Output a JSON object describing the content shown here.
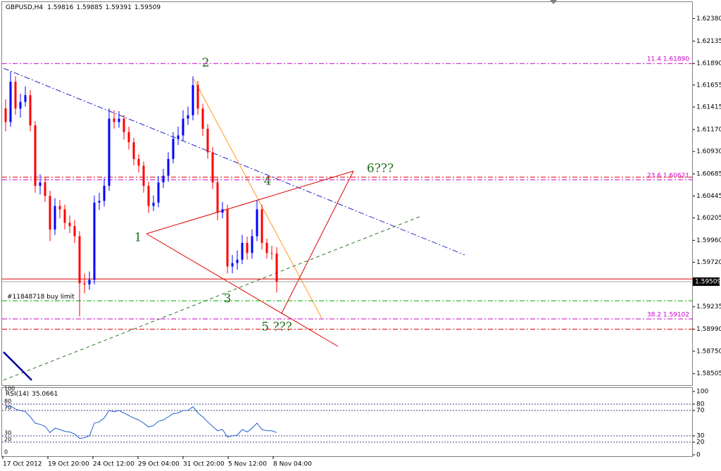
{
  "chart_data": {
    "type": "candlestick",
    "symbol": "GBPUSD,H4",
    "open": [
      1.614,
      1.61251,
      1.61691,
      1.61398,
      1.61471,
      1.61544,
      1.61215,
      1.60555,
      1.60592,
      1.60445,
      1.60078,
      1.60335,
      1.60298,
      1.60152,
      1.60115,
      1.60005,
      1.59492,
      1.5948,
      1.59529,
      1.60372,
      1.6039,
      1.60555,
      1.61288,
      1.61251,
      1.61288,
      1.61141,
      1.61031,
      1.60848,
      1.60775,
      1.60555,
      1.60335,
      1.60372,
      1.60592,
      1.60665,
      1.60848,
      1.61068,
      1.61105,
      1.61288,
      1.61325,
      1.61654,
      1.61398,
      1.61178,
      1.60921,
      1.60592,
      1.60262,
      1.60298,
      1.59675,
      1.59712,
      1.59749,
      1.59932,
      1.59822,
      1.60005,
      1.60298,
      1.59932,
      1.59822,
      1.59816
    ],
    "high": [
      1.615,
      1.618,
      1.6175,
      1.6156,
      1.6164,
      1.616,
      1.6126,
      1.6068,
      1.6065,
      1.605,
      1.6042,
      1.604,
      1.6035,
      1.6023,
      1.6018,
      1.6006,
      1.596,
      1.5962,
      1.6045,
      1.6048,
      1.6064,
      1.614,
      1.6138,
      1.6137,
      1.6133,
      1.612,
      1.6108,
      1.609,
      1.6082,
      1.606,
      1.6045,
      1.6066,
      1.6074,
      1.6092,
      1.6114,
      1.612,
      1.6138,
      1.6142,
      1.6175,
      1.617,
      1.6145,
      1.6123,
      1.6098,
      1.6064,
      1.6038,
      1.6035,
      1.598,
      1.5985,
      1.6002,
      1.6,
      1.6008,
      1.604,
      1.6035,
      1.5998,
      1.599,
      1.59885
    ],
    "low": [
      1.6115,
      1.612,
      1.6133,
      1.613,
      1.6142,
      1.6115,
      1.6048,
      1.6046,
      1.6038,
      1.5995,
      1.6002,
      1.602,
      1.6008,
      1.6004,
      1.5993,
      1.5913,
      1.5938,
      1.5942,
      1.5948,
      1.6029,
      1.6033,
      1.605,
      1.6118,
      1.6119,
      1.6106,
      1.6095,
      1.6078,
      1.607,
      1.6048,
      1.6026,
      1.6028,
      1.6032,
      1.6053,
      1.606,
      1.608,
      1.61,
      1.6105,
      1.6122,
      1.6127,
      1.6133,
      1.611,
      1.6085,
      1.6052,
      1.6018,
      1.602,
      1.596,
      1.596,
      1.5964,
      1.597,
      1.5975,
      1.5976,
      1.5995,
      1.5986,
      1.5976,
      1.5975,
      1.59391
    ],
    "close": [
      1.61251,
      1.61691,
      1.61398,
      1.61471,
      1.61544,
      1.61215,
      1.60555,
      1.60592,
      1.60445,
      1.60078,
      1.60335,
      1.60298,
      1.60152,
      1.60115,
      1.60005,
      1.59492,
      1.5948,
      1.59529,
      1.60372,
      1.6039,
      1.60555,
      1.61288,
      1.61251,
      1.61288,
      1.61141,
      1.61031,
      1.60848,
      1.60775,
      1.60555,
      1.60335,
      1.60372,
      1.60592,
      1.60665,
      1.60848,
      1.61068,
      1.61105,
      1.61288,
      1.61325,
      1.61654,
      1.61398,
      1.61178,
      1.60921,
      1.60592,
      1.60262,
      1.60298,
      1.59675,
      1.59712,
      1.59749,
      1.59932,
      1.59822,
      1.60005,
      1.60298,
      1.59932,
      1.59822,
      1.59816,
      1.59509
    ],
    "up_color": "#0000ff",
    "down_color": "#ff0000",
    "ylim": [
      1.5838,
      1.6256
    ],
    "yticks": [
      {
        "value": 1.6238,
        "label": "1.62380"
      },
      1.62135,
      {
        "value": 1.6189,
        "label": "1.61890"
      },
      1.61655,
      1.61415,
      {
        "value": 1.6117,
        "label": "1.61170"
      },
      {
        "value": 1.6093,
        "label": "1.60930"
      },
      1.60685,
      1.60445,
      1.60205,
      {
        "value": 1.5996,
        "label": "1.59960"
      },
      {
        "value": 1.5972,
        "label": "1.59720"
      },
      1.59235,
      {
        "value": 1.5899,
        "label": "1.58990"
      },
      {
        "value": 1.5875,
        "label": "1.58750"
      },
      1.58505
    ],
    "levels": [
      {
        "value": 1.6189,
        "label": "11.4 1.61890",
        "color": "#cc00cc",
        "dash": "dashdot"
      },
      {
        "value": 1.60621,
        "label": "23.6 1.60621",
        "color": "#cc00cc",
        "dash": "dashdot"
      },
      {
        "value": 1.59102,
        "label": "38.2 1.59102",
        "color": "#cc00cc",
        "dash": "dashdot"
      },
      {
        "value": 1.6065,
        "color": "#e00000",
        "dash": "dashdot"
      },
      {
        "value": 1.5899,
        "color": "#e00000",
        "dash": "dashdot"
      },
      {
        "value": 1.59538,
        "color": "#e00000",
        "dash": "solid"
      },
      {
        "value": 1.59509,
        "color": "#a0a0a0",
        "dash": "solid"
      },
      {
        "value": 1.593,
        "label": "#11848718 buy limit",
        "color": "#00aa00",
        "dash": "dashdot"
      }
    ],
    "annotations": [
      "1",
      "2",
      "3",
      "4",
      "5 ???",
      "6???"
    ],
    "time_labels": [
      "17 Oct 2012",
      "19 Oct 20:00",
      "24 Oct 12:00",
      "29 Oct 04:00",
      "31 Oct 20:00",
      "5 Nov 12:00",
      "8 Nov 04:00"
    ],
    "rsi": {
      "name": "RSI(14)",
      "color": "#1f5fd0",
      "values": [
        75,
        77,
        72,
        70,
        68,
        60,
        50,
        48,
        45,
        35,
        42,
        40,
        37,
        36,
        33,
        26,
        27,
        30,
        50,
        52,
        58,
        70,
        68,
        70,
        66,
        62,
        58,
        55,
        50,
        44,
        46,
        53,
        55,
        60,
        65,
        66,
        70,
        70,
        76,
        66,
        60,
        52,
        45,
        38,
        40,
        28,
        30,
        31,
        40,
        36,
        42,
        50,
        40,
        38,
        38,
        35.0661
      ],
      "ylim": [
        0,
        100
      ],
      "yticks": [
        100,
        80,
        70,
        30,
        20,
        0
      ],
      "levels": [
        80,
        70,
        30,
        20
      ]
    }
  }
}
